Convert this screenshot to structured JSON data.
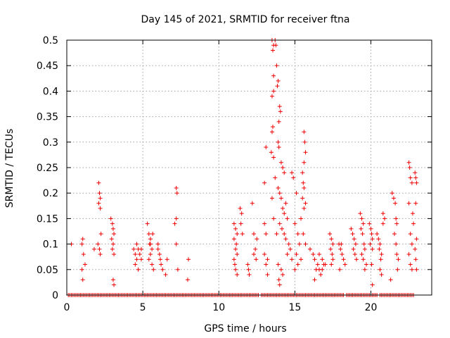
{
  "chart_data": {
    "type": "scatter",
    "title": "Day 145 of 2021, SRMTID for receiver ftna",
    "xlabel": "GPS time / hours",
    "ylabel": "SRMTID / TECUs",
    "xlim": [
      0,
      24
    ],
    "ylim": [
      0,
      0.5
    ],
    "xticks": [
      0,
      5,
      10,
      15,
      20
    ],
    "yticks": [
      0,
      0.05,
      0.1,
      0.15,
      0.2,
      0.25,
      0.3,
      0.35,
      0.4,
      0.45,
      0.5
    ],
    "ytick_labels": [
      "0",
      "0.05",
      "0.1",
      "0.15",
      "0.2",
      "0.25",
      "0.3",
      "0.35",
      "0.4",
      "0.45",
      "0.5"
    ],
    "grid": true,
    "marker": "+",
    "marker_color": "#ee0000",
    "series": [
      {
        "name": "SRMTID",
        "points": [
          [
            0.3,
            0.1
          ],
          [
            1.0,
            0.1
          ],
          [
            1.05,
            0.11
          ],
          [
            1.1,
            0.08
          ],
          [
            1.0,
            0.05
          ],
          [
            1.05,
            0.03
          ],
          [
            1.2,
            0.06
          ],
          [
            1.8,
            0.09
          ],
          [
            2.1,
            0.22
          ],
          [
            2.15,
            0.2
          ],
          [
            2.2,
            0.19
          ],
          [
            2.1,
            0.18
          ],
          [
            2.2,
            0.17
          ],
          [
            2.05,
            0.1
          ],
          [
            2.15,
            0.09
          ],
          [
            2.25,
            0.12
          ],
          [
            2.2,
            0.08
          ],
          [
            2.9,
            0.15
          ],
          [
            3.0,
            0.14
          ],
          [
            3.05,
            0.13
          ],
          [
            3.1,
            0.12
          ],
          [
            2.95,
            0.11
          ],
          [
            3.05,
            0.1
          ],
          [
            3.0,
            0.09
          ],
          [
            3.1,
            0.08
          ],
          [
            3.05,
            0.03
          ],
          [
            3.1,
            0.02
          ],
          [
            4.4,
            0.09
          ],
          [
            4.5,
            0.08
          ],
          [
            4.6,
            0.07
          ],
          [
            4.7,
            0.09
          ],
          [
            4.8,
            0.08
          ],
          [
            4.9,
            0.07
          ],
          [
            4.5,
            0.06
          ],
          [
            4.7,
            0.05
          ],
          [
            4.9,
            0.09
          ],
          [
            4.6,
            0.1
          ],
          [
            5.3,
            0.14
          ],
          [
            5.4,
            0.12
          ],
          [
            5.5,
            0.11
          ],
          [
            5.45,
            0.1
          ],
          [
            5.6,
            0.09
          ],
          [
            5.5,
            0.08
          ],
          [
            5.4,
            0.07
          ],
          [
            5.6,
            0.06
          ],
          [
            5.7,
            0.05
          ],
          [
            5.5,
            0.1
          ],
          [
            5.65,
            0.12
          ],
          [
            6.0,
            0.09
          ],
          [
            6.1,
            0.08
          ],
          [
            6.15,
            0.07
          ],
          [
            6.2,
            0.06
          ],
          [
            6.3,
            0.05
          ],
          [
            6.0,
            0.1
          ],
          [
            6.6,
            0.07
          ],
          [
            6.5,
            0.04
          ],
          [
            7.2,
            0.21
          ],
          [
            7.25,
            0.2
          ],
          [
            7.2,
            0.15
          ],
          [
            7.1,
            0.14
          ],
          [
            7.2,
            0.1
          ],
          [
            7.3,
            0.05
          ],
          [
            8.0,
            0.07
          ],
          [
            7.95,
            0.03
          ],
          [
            11.0,
            0.14
          ],
          [
            11.1,
            0.13
          ],
          [
            11.2,
            0.12
          ],
          [
            11.0,
            0.11
          ],
          [
            11.15,
            0.1
          ],
          [
            11.1,
            0.09
          ],
          [
            11.2,
            0.08
          ],
          [
            11.0,
            0.07
          ],
          [
            11.05,
            0.06
          ],
          [
            11.1,
            0.05
          ],
          [
            11.2,
            0.04
          ],
          [
            11.4,
            0.17
          ],
          [
            11.5,
            0.16
          ],
          [
            11.45,
            0.14
          ],
          [
            11.55,
            0.12
          ],
          [
            11.9,
            0.06
          ],
          [
            11.95,
            0.05
          ],
          [
            12.0,
            0.04
          ],
          [
            12.2,
            0.18
          ],
          [
            12.3,
            0.12
          ],
          [
            12.4,
            0.09
          ],
          [
            12.3,
            0.08
          ],
          [
            12.45,
            0.07
          ],
          [
            12.5,
            0.11
          ],
          [
            13.0,
            0.14
          ],
          [
            13.1,
            0.12
          ],
          [
            13.0,
            0.08
          ],
          [
            13.2,
            0.07
          ],
          [
            13.1,
            0.06
          ],
          [
            13.2,
            0.04
          ],
          [
            13.1,
            0.29
          ],
          [
            13.0,
            0.22
          ],
          [
            13.5,
            0.5
          ],
          [
            13.6,
            0.49
          ],
          [
            13.7,
            0.5
          ],
          [
            13.75,
            0.49
          ],
          [
            13.55,
            0.48
          ],
          [
            13.8,
            0.45
          ],
          [
            13.6,
            0.43
          ],
          [
            13.9,
            0.42
          ],
          [
            13.85,
            0.41
          ],
          [
            13.6,
            0.4
          ],
          [
            13.5,
            0.39
          ],
          [
            14.0,
            0.37
          ],
          [
            14.05,
            0.36
          ],
          [
            13.95,
            0.34
          ],
          [
            13.55,
            0.33
          ],
          [
            13.5,
            0.32
          ],
          [
            13.9,
            0.3
          ],
          [
            13.95,
            0.29
          ],
          [
            13.45,
            0.28
          ],
          [
            13.6,
            0.27
          ],
          [
            14.1,
            0.26
          ],
          [
            14.2,
            0.25
          ],
          [
            14.3,
            0.24
          ],
          [
            13.7,
            0.23
          ],
          [
            13.9,
            0.21
          ],
          [
            14.0,
            0.2
          ],
          [
            14.1,
            0.19
          ],
          [
            13.5,
            0.19
          ],
          [
            14.4,
            0.18
          ],
          [
            14.2,
            0.17
          ],
          [
            14.3,
            0.16
          ],
          [
            14.5,
            0.15
          ],
          [
            13.6,
            0.15
          ],
          [
            14.0,
            0.14
          ],
          [
            14.15,
            0.13
          ],
          [
            14.3,
            0.12
          ],
          [
            13.8,
            0.12
          ],
          [
            14.4,
            0.11
          ],
          [
            14.6,
            0.1
          ],
          [
            14.7,
            0.09
          ],
          [
            14.5,
            0.08
          ],
          [
            14.8,
            0.07
          ],
          [
            13.9,
            0.06
          ],
          [
            14.1,
            0.05
          ],
          [
            14.2,
            0.04
          ],
          [
            13.95,
            0.03
          ],
          [
            14.0,
            0.02
          ],
          [
            14.8,
            0.24
          ],
          [
            14.9,
            0.23
          ],
          [
            15.1,
            0.2
          ],
          [
            15.0,
            0.14
          ],
          [
            15.2,
            0.12
          ],
          [
            15.3,
            0.1
          ],
          [
            15.1,
            0.08
          ],
          [
            15.4,
            0.07
          ],
          [
            15.2,
            0.06
          ],
          [
            15.0,
            0.05
          ],
          [
            15.6,
            0.32
          ],
          [
            15.65,
            0.3
          ],
          [
            15.7,
            0.28
          ],
          [
            15.6,
            0.26
          ],
          [
            15.5,
            0.24
          ],
          [
            15.55,
            0.22
          ],
          [
            15.6,
            0.21
          ],
          [
            15.5,
            0.19
          ],
          [
            15.7,
            0.18
          ],
          [
            15.6,
            0.17
          ],
          [
            15.4,
            0.15
          ],
          [
            15.55,
            0.12
          ],
          [
            15.7,
            0.1
          ],
          [
            16.0,
            0.09
          ],
          [
            16.2,
            0.08
          ],
          [
            16.3,
            0.07
          ],
          [
            16.5,
            0.06
          ],
          [
            16.6,
            0.05
          ],
          [
            16.7,
            0.04
          ],
          [
            16.8,
            0.07
          ],
          [
            16.9,
            0.06
          ],
          [
            16.4,
            0.05
          ],
          [
            16.6,
            0.08
          ],
          [
            16.8,
            0.05
          ],
          [
            17.0,
            0.06
          ],
          [
            16.3,
            0.03
          ],
          [
            17.3,
            0.12
          ],
          [
            17.4,
            0.11
          ],
          [
            17.5,
            0.1
          ],
          [
            17.35,
            0.09
          ],
          [
            17.45,
            0.08
          ],
          [
            17.5,
            0.07
          ],
          [
            17.4,
            0.06
          ],
          [
            17.9,
            0.1
          ],
          [
            18.0,
            0.09
          ],
          [
            18.1,
            0.08
          ],
          [
            18.2,
            0.07
          ],
          [
            18.3,
            0.06
          ],
          [
            17.95,
            0.05
          ],
          [
            18.05,
            0.1
          ],
          [
            18.7,
            0.13
          ],
          [
            18.8,
            0.12
          ],
          [
            18.9,
            0.11
          ],
          [
            19.0,
            0.1
          ],
          [
            18.85,
            0.09
          ],
          [
            18.95,
            0.08
          ],
          [
            19.05,
            0.07
          ],
          [
            19.3,
            0.16
          ],
          [
            19.4,
            0.15
          ],
          [
            19.5,
            0.14
          ],
          [
            19.35,
            0.13
          ],
          [
            19.45,
            0.12
          ],
          [
            19.55,
            0.1
          ],
          [
            19.6,
            0.09
          ],
          [
            19.4,
            0.08
          ],
          [
            19.5,
            0.07
          ],
          [
            19.7,
            0.06
          ],
          [
            19.6,
            0.05
          ],
          [
            19.9,
            0.14
          ],
          [
            20.0,
            0.13
          ],
          [
            20.05,
            0.12
          ],
          [
            20.1,
            0.11
          ],
          [
            19.95,
            0.1
          ],
          [
            20.1,
            0.09
          ],
          [
            20.05,
            0.06
          ],
          [
            20.1,
            0.02
          ],
          [
            20.4,
            0.12
          ],
          [
            20.5,
            0.11
          ],
          [
            20.6,
            0.1
          ],
          [
            20.55,
            0.09
          ],
          [
            20.7,
            0.08
          ],
          [
            20.65,
            0.07
          ],
          [
            20.6,
            0.05
          ],
          [
            20.7,
            0.04
          ],
          [
            20.8,
            0.16
          ],
          [
            20.9,
            0.15
          ],
          [
            20.8,
            0.14
          ],
          [
            21.3,
            0.03
          ],
          [
            21.4,
            0.2
          ],
          [
            21.5,
            0.19
          ],
          [
            21.6,
            0.18
          ],
          [
            21.65,
            0.15
          ],
          [
            21.7,
            0.14
          ],
          [
            21.55,
            0.12
          ],
          [
            21.65,
            0.1
          ],
          [
            21.7,
            0.08
          ],
          [
            21.8,
            0.07
          ],
          [
            21.75,
            0.05
          ],
          [
            22.5,
            0.26
          ],
          [
            22.55,
            0.25
          ],
          [
            22.6,
            0.23
          ],
          [
            22.7,
            0.22
          ],
          [
            22.5,
            0.18
          ],
          [
            22.75,
            0.16
          ],
          [
            22.8,
            0.14
          ],
          [
            22.6,
            0.12
          ],
          [
            22.7,
            0.1
          ],
          [
            22.5,
            0.08
          ],
          [
            22.6,
            0.06
          ],
          [
            22.7,
            0.05
          ],
          [
            22.9,
            0.24
          ],
          [
            22.95,
            0.23
          ],
          [
            23.0,
            0.22
          ],
          [
            22.95,
            0.18
          ],
          [
            23.0,
            0.11
          ],
          [
            22.9,
            0.09
          ],
          [
            22.95,
            0.07
          ],
          [
            23.0,
            0.05
          ]
        ]
      }
    ],
    "baseline_spans": [
      [
        0.1,
        12.6
      ],
      [
        12.8,
        18.2
      ],
      [
        18.4,
        20.4
      ],
      [
        20.6,
        22.8
      ]
    ]
  }
}
